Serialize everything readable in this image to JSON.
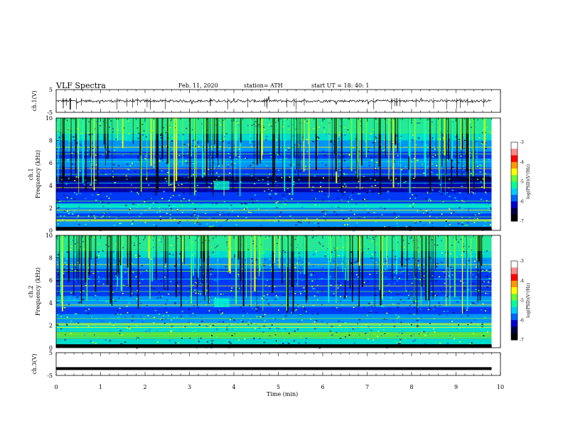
{
  "header": {
    "title": "VLF  Spectra",
    "date": "Feb. 11, 2020",
    "station": "station= ATH",
    "start": "start  UT  =    18: 40: 1"
  },
  "chart_data": {
    "type": "heatmap",
    "duration_min": 9.8,
    "x_axis": {
      "label": "Time  (min)",
      "range": [
        0,
        10
      ],
      "ticks": [
        "0",
        "1",
        "2",
        "3",
        "4",
        "5",
        "6",
        "7",
        "8",
        "9",
        "10"
      ]
    },
    "panels": [
      {
        "type": "line",
        "ylabel": "ch.1(V)",
        "ylim": [
          -5,
          5
        ],
        "ticks": [
          "5",
          "-5"
        ],
        "baseline": 0,
        "note": "noisy waveform with occasional spikes"
      },
      {
        "type": "heatmap",
        "ylabel_top": "ch.1",
        "ylabel": "Frequency (kHz)",
        "ylim": [
          0,
          10
        ],
        "ticks": [
          "0",
          "2",
          "4",
          "6",
          "8",
          "10"
        ],
        "colorbar": {
          "label": "log(PSD)(V²/Hz)",
          "range": [
            -7,
            -3
          ],
          "ticks": [
            "-3",
            "-4",
            "-5",
            "-6",
            "-7"
          ]
        }
      },
      {
        "type": "heatmap",
        "ylabel_top": "ch.2",
        "ylabel": "Frequency (kHz)",
        "ylim": [
          0,
          10
        ],
        "ticks": [
          "0",
          "2",
          "4",
          "6",
          "8",
          "10"
        ],
        "colorbar": {
          "label": "log(PSD)(V²/Hz)",
          "range": [
            -7,
            -3
          ],
          "ticks": [
            "-3",
            "-4",
            "-5",
            "-6",
            "-7"
          ]
        }
      },
      {
        "type": "line",
        "ylabel": "ch.3(V)",
        "ylim": [
          -5,
          5
        ],
        "ticks": [
          "5",
          "-5"
        ],
        "baseline": -2,
        "note": "flat thick line near -2 V"
      }
    ],
    "colormap": [
      "#000033",
      "#0000aa",
      "#0040ff",
      "#00aaff",
      "#00ffcc",
      "#66ff33",
      "#ffff00",
      "#ff8800",
      "#ff0000",
      "#ffffff"
    ]
  }
}
